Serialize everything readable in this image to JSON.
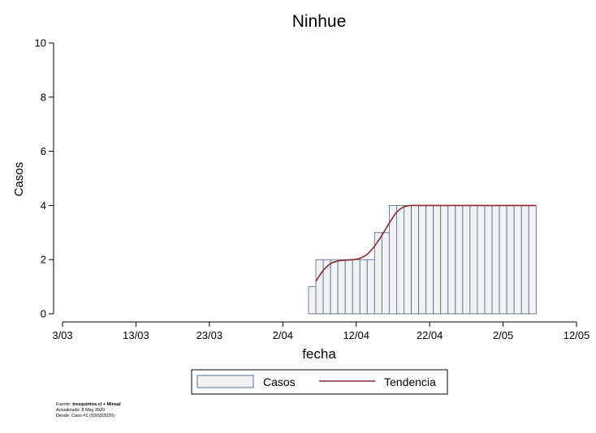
{
  "chart_data": {
    "type": "bar",
    "title": "Ninhue",
    "xlabel": "fecha",
    "ylabel": "Casos",
    "ylim": [
      0,
      10
    ],
    "yticks": [
      0,
      2,
      4,
      6,
      8,
      10
    ],
    "xticks": [
      "3/03",
      "13/03",
      "23/03",
      "2/04",
      "12/04",
      "22/04",
      "2/05",
      "12/05"
    ],
    "xdomain_days": [
      0,
      70
    ],
    "first_day": 34,
    "series": [
      {
        "name": "Casos",
        "kind": "bar",
        "color": "#f2f2f2",
        "stroke": "#5b7391",
        "values": [
          1,
          2,
          2,
          2,
          2,
          2,
          2,
          2,
          2,
          3,
          3,
          4,
          4,
          4,
          4,
          4,
          4,
          4,
          4,
          4,
          4,
          4,
          4,
          4,
          4,
          4,
          4,
          4,
          4,
          4,
          4
        ]
      },
      {
        "name": "Tendencia",
        "kind": "line",
        "color": "#8b2a35",
        "values": [
          1.2,
          1.6,
          1.85,
          1.95,
          1.98,
          2.0,
          2.05,
          2.2,
          2.5,
          2.9,
          3.35,
          3.75,
          3.95,
          4,
          4,
          4,
          4,
          4,
          4,
          4,
          4,
          4,
          4,
          4,
          4,
          4,
          4,
          4,
          4,
          4,
          4
        ]
      }
    ],
    "legend": {
      "position": "bottom",
      "items": [
        "Casos",
        "Tendencia"
      ]
    },
    "grid": false
  },
  "footer": {
    "source_label": "Fuente:",
    "source_value": "tresquintos.cl + Minsal",
    "updated": "Actualizado: 8 May 2020",
    "since": "Desde: Caso #1  (03/03/2020)"
  }
}
